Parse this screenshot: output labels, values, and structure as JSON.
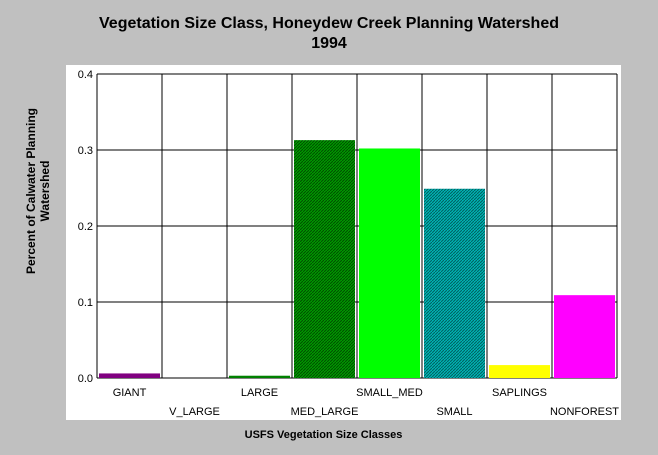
{
  "chart_data": {
    "type": "bar",
    "title_line1": "Vegetation Size Class, Honeydew Creek Planning Watershed",
    "title_line2": "1994",
    "xlabel": "USFS Vegetation Size Classes",
    "ylabel_line1": "Percent of Calwater Planning",
    "ylabel_line2": "Watershed",
    "ylim": [
      0,
      0.4
    ],
    "yticks": [
      "0.0",
      "0.1",
      "0.2",
      "0.3",
      "0.4"
    ],
    "grid": true,
    "categories": [
      "GIANT",
      "V_LARGE",
      "LARGE",
      "MED_LARGE",
      "SMALL_MED",
      "SMALL",
      "SAPLINGS",
      "NONFOREST"
    ],
    "values": [
      0.006,
      0.0,
      0.003,
      0.313,
      0.302,
      0.249,
      0.017,
      0.109
    ],
    "colors": [
      "#800080",
      "#006400",
      "#008000",
      "#008000",
      "#00ff00",
      "#008080",
      "#ffff00",
      "#ff00ff"
    ],
    "patterns": [
      "solid",
      "solid",
      "solid",
      "hatch-dark",
      "solid",
      "hatch-cyan",
      "solid",
      "solid"
    ]
  }
}
